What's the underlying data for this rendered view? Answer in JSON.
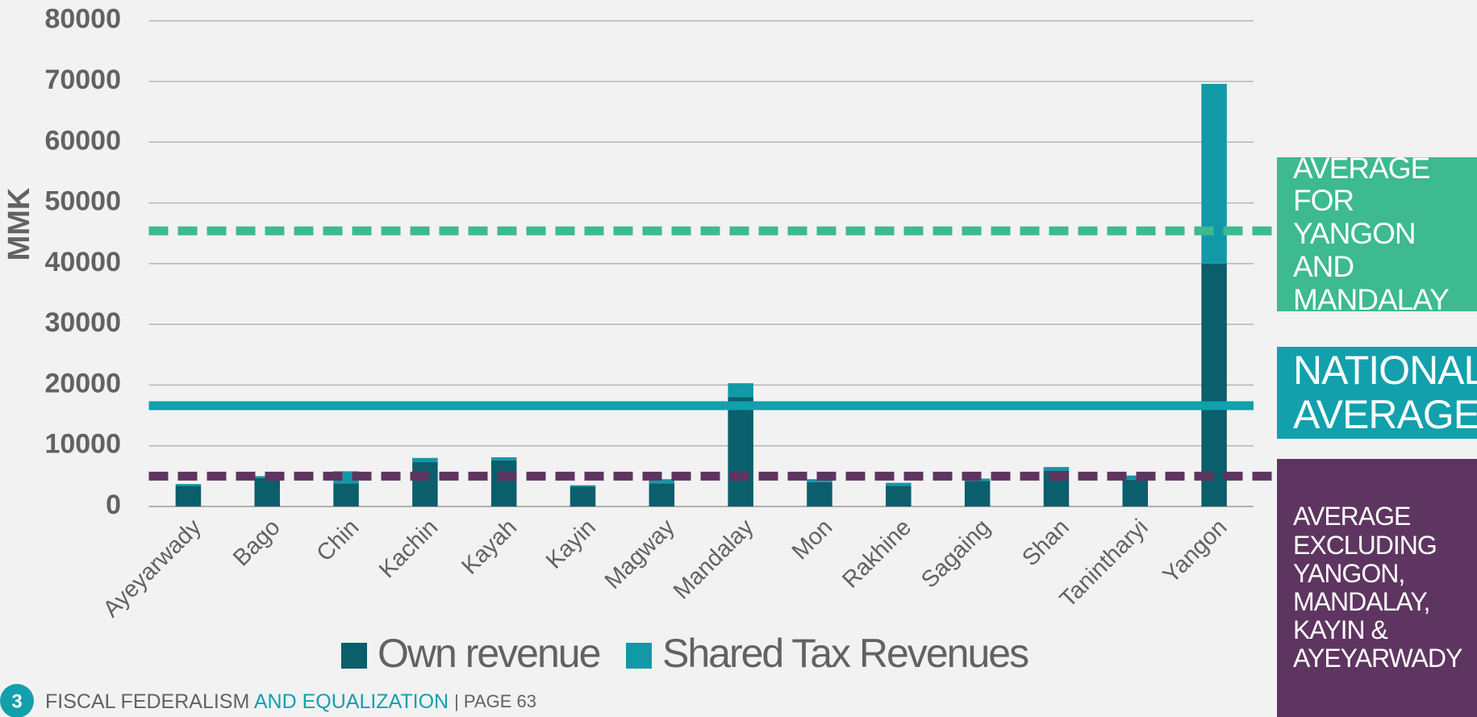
{
  "chart_data": {
    "type": "stacked_bar",
    "ylabel": "MMK",
    "categories": [
      "Ayeyarwady",
      "Bago",
      "Chin",
      "Kachin",
      "Kayah",
      "Kayin",
      "Magway",
      "Mandalay",
      "Mon",
      "Rakhine",
      "Sagaing",
      "Shan",
      "Tanintharyi",
      "Yangon"
    ],
    "series": [
      {
        "name": "Own revenue",
        "color": "#0b5e6b",
        "values": [
          3400,
          4700,
          3800,
          7300,
          7600,
          3300,
          3800,
          18000,
          4000,
          3400,
          4200,
          5900,
          4400,
          40000
        ]
      },
      {
        "name": "Shared Tax Revenues",
        "color": "#1199a7",
        "values": [
          300,
          300,
          2000,
          700,
          500,
          200,
          700,
          2300,
          500,
          500,
          400,
          600,
          700,
          29600
        ]
      }
    ],
    "ylim": [
      0,
      80000
    ],
    "yticks": [
      0,
      10000,
      20000,
      30000,
      40000,
      50000,
      60000,
      70000,
      80000
    ],
    "grid": true,
    "reference_lines": [
      {
        "name": "AVERAGE FOR YANGON AND MANDALAY",
        "value": 45400,
        "color": "#3dba8f",
        "style": "dashed"
      },
      {
        "name": "NATIONAL AVERAGE",
        "value": 16600,
        "color": "#12a0ad",
        "style": "solid"
      },
      {
        "name": "AVERAGE EXCLUDING YANGON, MANDALAY, KAYIN & AYEYARWADY",
        "value": 5000,
        "color": "#5e3560",
        "style": "dashed"
      }
    ]
  },
  "footer": {
    "number": "3",
    "part1": "FISCAL FEDERALISM",
    "part2": "AND EQUALIZATION",
    "page": "| PAGE 63"
  }
}
